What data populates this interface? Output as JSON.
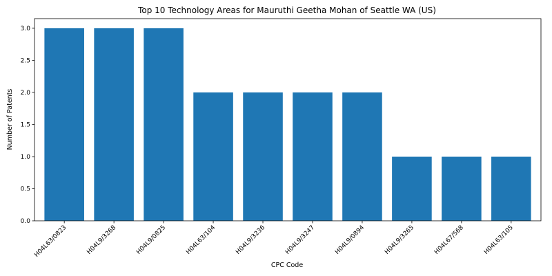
{
  "chart_data": {
    "type": "bar",
    "title": "Top 10 Technology Areas for Mauruthi Geetha Mohan of Seattle WA (US)",
    "xlabel": "CPC Code",
    "ylabel": "Number of Patents",
    "categories": [
      "H04L63/0823",
      "H04L9/3268",
      "H04L9/0825",
      "H04L63/104",
      "H04L9/3236",
      "H04L9/3247",
      "H04L9/0894",
      "H04L9/3265",
      "H04L67/568",
      "H04L63/105"
    ],
    "values": [
      3,
      3,
      3,
      2,
      2,
      2,
      2,
      1,
      1,
      1
    ],
    "ylim": [
      0,
      3.15
    ],
    "yticks": [
      "0.0",
      "0.5",
      "1.0",
      "1.5",
      "2.0",
      "2.5",
      "3.0"
    ],
    "bar_color": "#1f77b4",
    "grid": false
  }
}
